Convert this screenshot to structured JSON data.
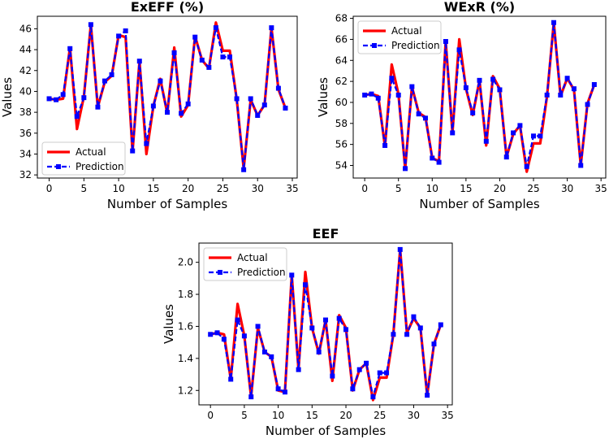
{
  "chart_data": [
    {
      "type": "line",
      "title": "ExEFF (%)",
      "xlabel": "Number of Samples",
      "ylabel": "Values",
      "xlim": [
        -1.7,
        35.7
      ],
      "ylim": [
        31.7,
        47.2
      ],
      "xticks": [
        0,
        5,
        10,
        15,
        20,
        25,
        30,
        35
      ],
      "yticks": [
        32,
        34,
        36,
        38,
        40,
        42,
        44,
        46
      ],
      "legend_position": "lower-left",
      "series": [
        {
          "name": "Actual",
          "color": "#ff0000",
          "style": "solid",
          "values": [
            39.3,
            39.2,
            39.3,
            44.2,
            36.4,
            39.5,
            46.4,
            38.5,
            40.9,
            41.5,
            45.4,
            45.2,
            34.2,
            42.9,
            34.0,
            38.6,
            41.2,
            37.9,
            44.2,
            37.6,
            38.7,
            45.3,
            43.0,
            42.2,
            46.6,
            43.9,
            43.9,
            39.2,
            32.6,
            39.2,
            37.7,
            38.7,
            46.1,
            40.2,
            38.4
          ]
        },
        {
          "name": "Prediction",
          "color": "#0000ff",
          "style": "dashed",
          "marker": "square",
          "values": [
            39.3,
            39.2,
            39.7,
            44.1,
            37.6,
            39.4,
            46.4,
            38.5,
            41.0,
            41.6,
            45.3,
            45.8,
            34.3,
            42.9,
            35.0,
            38.6,
            41.0,
            38.0,
            43.7,
            37.9,
            38.8,
            45.2,
            43.0,
            42.3,
            46.1,
            43.3,
            43.3,
            39.3,
            32.5,
            39.3,
            37.7,
            38.7,
            46.1,
            40.3,
            38.4
          ]
        }
      ]
    },
    {
      "type": "line",
      "title": "WExR (%)",
      "xlabel": "Number of Samples",
      "ylabel": "Values",
      "xlim": [
        -1.7,
        35.7
      ],
      "ylim": [
        52.8,
        68.2
      ],
      "xticks": [
        0,
        5,
        10,
        15,
        20,
        25,
        30,
        35
      ],
      "yticks": [
        54,
        56,
        58,
        60,
        62,
        64,
        66,
        68
      ],
      "legend_position": "top-left",
      "series": [
        {
          "name": "Actual",
          "color": "#ff0000",
          "style": "solid",
          "values": [
            60.7,
            60.8,
            60.6,
            55.8,
            63.6,
            60.8,
            53.7,
            61.5,
            59.0,
            58.6,
            54.7,
            54.4,
            65.8,
            57.1,
            66.0,
            61.3,
            58.8,
            62.1,
            55.9,
            62.5,
            61.3,
            54.8,
            57.0,
            57.8,
            53.4,
            56.1,
            56.1,
            60.6,
            67.6,
            60.6,
            62.3,
            61.2,
            54.0,
            59.9,
            61.7
          ]
        },
        {
          "name": "Prediction",
          "color": "#0000ff",
          "style": "dashed",
          "marker": "square",
          "values": [
            60.7,
            60.8,
            60.4,
            55.9,
            62.3,
            60.7,
            53.7,
            61.5,
            58.9,
            58.5,
            54.7,
            54.3,
            65.8,
            57.1,
            65.0,
            61.4,
            59.0,
            62.1,
            56.3,
            62.2,
            61.2,
            54.8,
            57.1,
            57.8,
            53.9,
            56.8,
            56.8,
            60.7,
            67.6,
            60.7,
            62.3,
            61.3,
            54.0,
            59.8,
            61.7
          ]
        }
      ]
    },
    {
      "type": "line",
      "title": "EEF",
      "xlabel": "Number of Samples",
      "ylabel": "Values",
      "xlim": [
        -1.7,
        35.7
      ],
      "ylim": [
        1.11,
        2.12
      ],
      "xticks": [
        0,
        5,
        10,
        15,
        20,
        25,
        30,
        35
      ],
      "yticks": [
        1.2,
        1.4,
        1.6,
        1.8,
        2.0
      ],
      "ytick_labels": [
        "1.2",
        "1.4",
        "1.6",
        "1.8",
        "2.0"
      ],
      "legend_position": "top-left",
      "series": [
        {
          "name": "Actual",
          "color": "#ff0000",
          "style": "solid",
          "values": [
            1.55,
            1.56,
            1.55,
            1.27,
            1.74,
            1.54,
            1.16,
            1.59,
            1.44,
            1.41,
            1.2,
            1.19,
            1.92,
            1.33,
            1.94,
            1.59,
            1.43,
            1.64,
            1.26,
            1.67,
            1.59,
            1.2,
            1.33,
            1.37,
            1.14,
            1.28,
            1.28,
            1.55,
            2.08,
            1.56,
            1.65,
            1.59,
            1.17,
            1.49,
            1.61
          ]
        },
        {
          "name": "Prediction",
          "color": "#0000ff",
          "style": "dashed",
          "marker": "square",
          "values": [
            1.55,
            1.56,
            1.52,
            1.27,
            1.64,
            1.54,
            1.16,
            1.6,
            1.44,
            1.41,
            1.21,
            1.19,
            1.92,
            1.33,
            1.86,
            1.59,
            1.44,
            1.64,
            1.29,
            1.65,
            1.58,
            1.21,
            1.33,
            1.37,
            1.16,
            1.31,
            1.31,
            1.55,
            2.08,
            1.55,
            1.66,
            1.59,
            1.17,
            1.49,
            1.61
          ]
        }
      ]
    }
  ]
}
